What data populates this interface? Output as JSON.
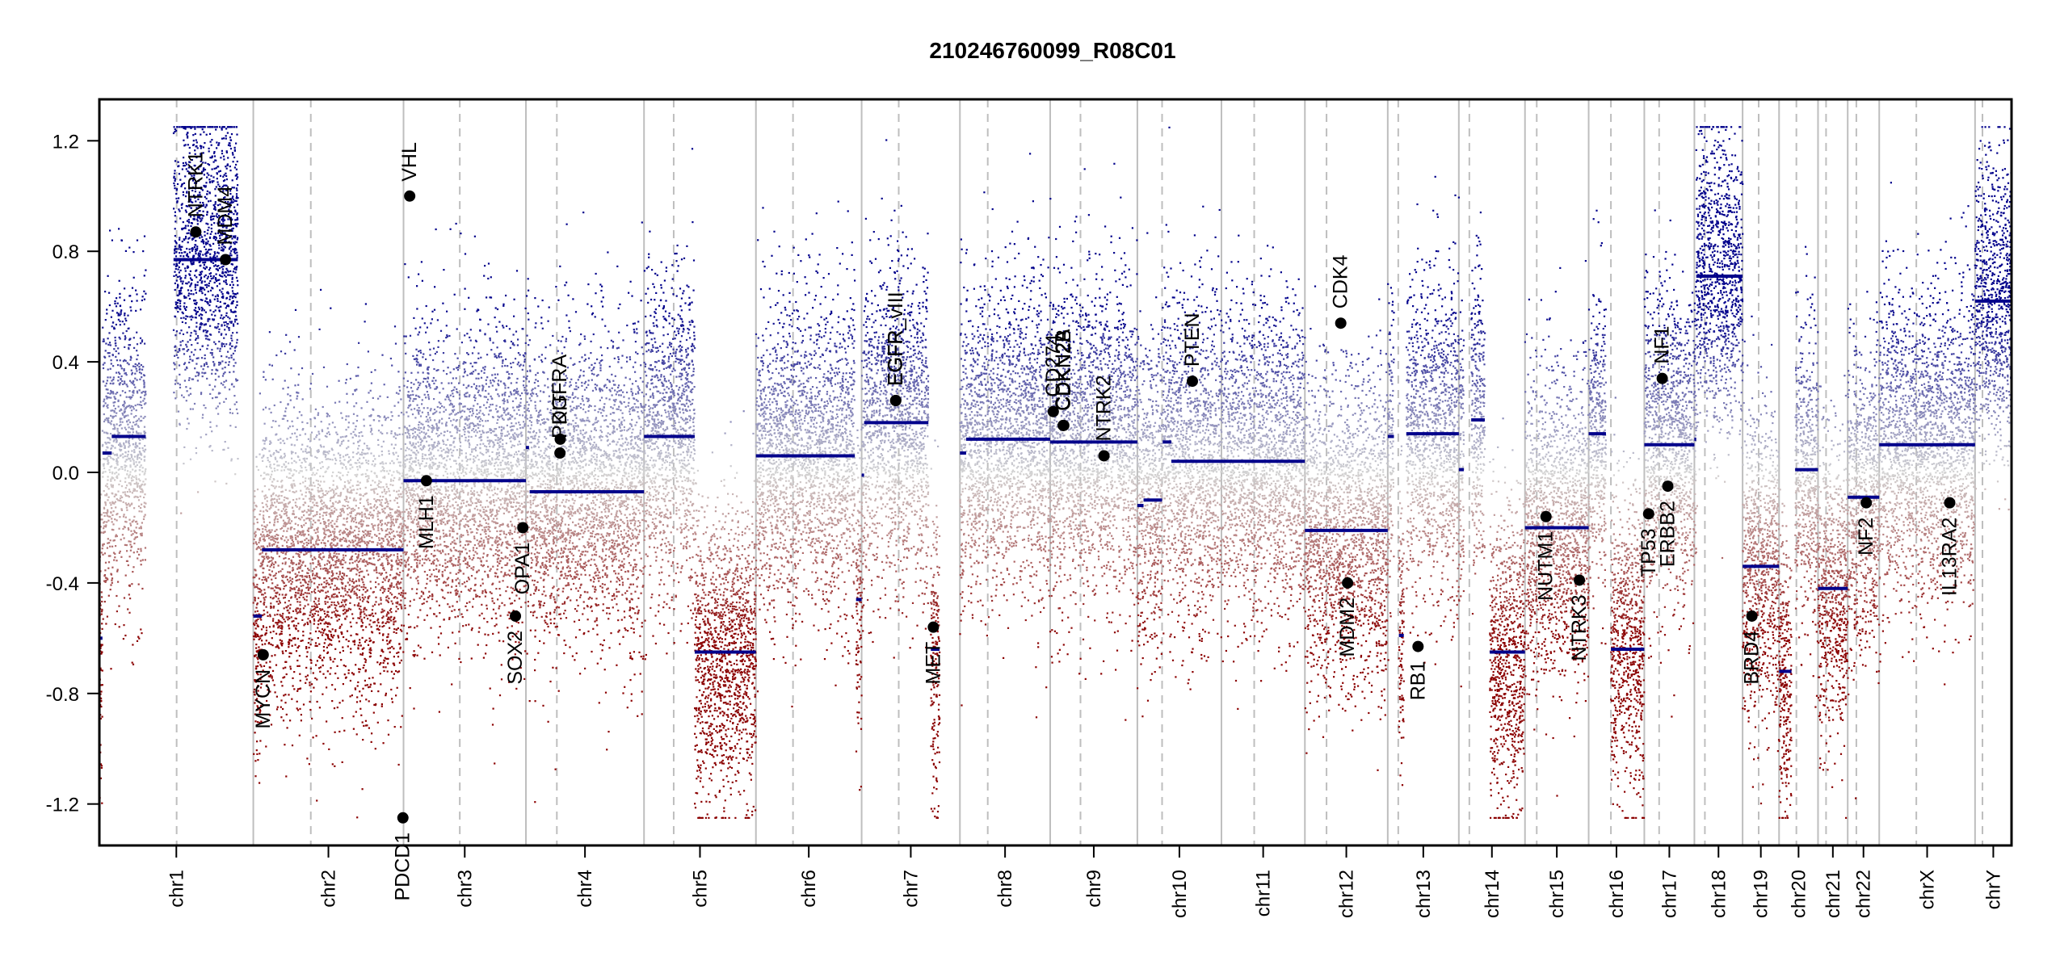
{
  "chart_data": {
    "type": "scatter",
    "title": "210246760099_R08C01",
    "xlabel": "",
    "ylabel": "",
    "ylim": [
      -1.35,
      1.35
    ],
    "yticks": [
      -1.2,
      -0.8,
      -0.4,
      0.0,
      0.4,
      0.8,
      1.2
    ],
    "ytick_labels": [
      "-1.2",
      "-0.8",
      "-0.4",
      "0.0",
      "0.4",
      "0.8",
      "1.2"
    ],
    "grid": false,
    "legend": "none",
    "colors": {
      "gain": "#00008b",
      "neutral": "#d3d3d3",
      "loss": "#8b0000",
      "segment": "#00008b",
      "gene_point": "#000000",
      "chrom_boundary": "#bebebe",
      "centromere": "#bebebe"
    },
    "chromosomes": [
      {
        "name": "chr1",
        "length": 249,
        "centromere": 125
      },
      {
        "name": "chr2",
        "length": 243,
        "centromere": 93
      },
      {
        "name": "chr3",
        "length": 198,
        "centromere": 91
      },
      {
        "name": "chr4",
        "length": 191,
        "centromere": 50
      },
      {
        "name": "chr5",
        "length": 181,
        "centromere": 48
      },
      {
        "name": "chr6",
        "length": 171,
        "centromere": 60
      },
      {
        "name": "chr7",
        "length": 159,
        "centromere": 60
      },
      {
        "name": "chr8",
        "length": 146,
        "centromere": 45
      },
      {
        "name": "chr9",
        "length": 141,
        "centromere": 49
      },
      {
        "name": "chr10",
        "length": 136,
        "centromere": 40
      },
      {
        "name": "chr11",
        "length": 135,
        "centromere": 53
      },
      {
        "name": "chr12",
        "length": 134,
        "centromere": 35
      },
      {
        "name": "chr13",
        "length": 115,
        "centromere": 17
      },
      {
        "name": "chr14",
        "length": 107,
        "centromere": 17
      },
      {
        "name": "chr15",
        "length": 103,
        "centromere": 19
      },
      {
        "name": "chr16",
        "length": 90,
        "centromere": 36
      },
      {
        "name": "chr17",
        "length": 81,
        "centromere": 24
      },
      {
        "name": "chr18",
        "length": 78,
        "centromere": 17
      },
      {
        "name": "chr19",
        "length": 59,
        "centromere": 26
      },
      {
        "name": "chr20",
        "length": 63,
        "centromere": 28
      },
      {
        "name": "chr21",
        "length": 48,
        "centromere": 13
      },
      {
        "name": "chr22",
        "length": 51,
        "centromere": 14
      },
      {
        "name": "chrX",
        "length": 155,
        "centromere": 60
      },
      {
        "name": "chrY",
        "length": 59,
        "centromere": 12
      }
    ],
    "segments": [
      {
        "chrom": "chr1",
        "start": 0,
        "end": 5,
        "value": -0.6
      },
      {
        "chrom": "chr1",
        "start": 5,
        "end": 20,
        "value": 0.07
      },
      {
        "chrom": "chr1",
        "start": 20,
        "end": 75,
        "value": 0.13
      },
      {
        "chrom": "chr1",
        "start": 120,
        "end": 224,
        "value": 0.77
      },
      {
        "chrom": "chr2",
        "start": 0,
        "end": 14,
        "value": -0.52
      },
      {
        "chrom": "chr2",
        "start": 14,
        "end": 243,
        "value": -0.28
      },
      {
        "chrom": "chr3",
        "start": 0,
        "end": 198,
        "value": -0.03
      },
      {
        "chrom": "chr4",
        "start": 0,
        "end": 5,
        "value": 0.09
      },
      {
        "chrom": "chr4",
        "start": 6,
        "end": 191,
        "value": -0.07
      },
      {
        "chrom": "chr5",
        "start": 0,
        "end": 82,
        "value": 0.13
      },
      {
        "chrom": "chr5",
        "start": 82,
        "end": 181,
        "value": -0.65
      },
      {
        "chrom": "chr6",
        "start": 0,
        "end": 160,
        "value": 0.06
      },
      {
        "chrom": "chr6",
        "start": 162,
        "end": 171,
        "value": -0.46
      },
      {
        "chrom": "chr7",
        "start": 0,
        "end": 4,
        "value": -0.01
      },
      {
        "chrom": "chr7",
        "start": 4,
        "end": 108,
        "value": 0.18
      },
      {
        "chrom": "chr7",
        "start": 112,
        "end": 126,
        "value": -0.64
      },
      {
        "chrom": "chr8",
        "start": 0,
        "end": 10,
        "value": 0.07
      },
      {
        "chrom": "chr8",
        "start": 10,
        "end": 146,
        "value": 0.12
      },
      {
        "chrom": "chr9",
        "start": 0,
        "end": 141,
        "value": 0.11
      },
      {
        "chrom": "chr10",
        "start": 0,
        "end": 10,
        "value": -0.12
      },
      {
        "chrom": "chr10",
        "start": 10,
        "end": 40,
        "value": -0.1
      },
      {
        "chrom": "chr10",
        "start": 41,
        "end": 55,
        "value": 0.11
      },
      {
        "chrom": "chr10",
        "start": 55,
        "end": 136,
        "value": 0.04
      },
      {
        "chrom": "chr11",
        "start": 0,
        "end": 135,
        "value": 0.04
      },
      {
        "chrom": "chr12",
        "start": 0,
        "end": 134,
        "value": -0.21
      },
      {
        "chrom": "chr13",
        "start": 0,
        "end": 10,
        "value": 0.13
      },
      {
        "chrom": "chr13",
        "start": 18,
        "end": 26,
        "value": -0.59
      },
      {
        "chrom": "chr13",
        "start": 30,
        "end": 115,
        "value": 0.14
      },
      {
        "chrom": "chr14",
        "start": 0,
        "end": 8,
        "value": 0.01
      },
      {
        "chrom": "chr14",
        "start": 20,
        "end": 42,
        "value": 0.19
      },
      {
        "chrom": "chr14",
        "start": 50,
        "end": 107,
        "value": -0.65
      },
      {
        "chrom": "chr15",
        "start": 0,
        "end": 103,
        "value": -0.2
      },
      {
        "chrom": "chr16",
        "start": 0,
        "end": 28,
        "value": 0.14
      },
      {
        "chrom": "chr16",
        "start": 36,
        "end": 90,
        "value": -0.64
      },
      {
        "chrom": "chr17",
        "start": 0,
        "end": 81,
        "value": 0.1
      },
      {
        "chrom": "chr18",
        "start": 0,
        "end": 3,
        "value": 0.12
      },
      {
        "chrom": "chr18",
        "start": 3,
        "end": 78,
        "value": 0.71
      },
      {
        "chrom": "chr19",
        "start": 0,
        "end": 59,
        "value": -0.34
      },
      {
        "chrom": "chr20",
        "start": 0,
        "end": 20,
        "value": -0.72
      },
      {
        "chrom": "chr20",
        "start": 26,
        "end": 63,
        "value": 0.01
      },
      {
        "chrom": "chr21",
        "start": 0,
        "end": 48,
        "value": -0.42
      },
      {
        "chrom": "chr22",
        "start": 0,
        "end": 51,
        "value": -0.09
      },
      {
        "chrom": "chrX",
        "start": 0,
        "end": 155,
        "value": 0.1
      },
      {
        "chrom": "chrY",
        "start": 0,
        "end": 59,
        "value": 0.62
      }
    ],
    "genes": [
      {
        "name": "NTRK1",
        "chrom": "chr1",
        "pos": 156,
        "value": 0.87
      },
      {
        "name": "MDM4",
        "chrom": "chr1",
        "pos": 204,
        "value": 0.77
      },
      {
        "name": "MYCN",
        "chrom": "chr2",
        "pos": 16,
        "value": -0.66
      },
      {
        "name": "PDCD1",
        "chrom": "chr2",
        "pos": 242,
        "value": -1.25
      },
      {
        "name": "VHL",
        "chrom": "chr3",
        "pos": 10,
        "value": 1.0
      },
      {
        "name": "MLH1",
        "chrom": "chr3",
        "pos": 37,
        "value": -0.03
      },
      {
        "name": "SOX2",
        "chrom": "chr3",
        "pos": 181,
        "value": -0.52
      },
      {
        "name": "OPA1",
        "chrom": "chr3",
        "pos": 193,
        "value": -0.2
      },
      {
        "name": "PDGFRA",
        "chrom": "chr4",
        "pos": 55,
        "value": 0.07
      },
      {
        "name": "KIT",
        "chrom": "chr4",
        "pos": 55.5,
        "value": 0.12
      },
      {
        "name": "EGFR",
        "chrom": "chr7",
        "pos": 55,
        "value": 0.26
      },
      {
        "name": "EGFR_vIII",
        "chrom": "chr7",
        "pos": 55.2,
        "value": 0.26
      },
      {
        "name": "MET",
        "chrom": "chr7",
        "pos": 116,
        "value": -0.56
      },
      {
        "name": "CD274",
        "chrom": "chr9",
        "pos": 5,
        "value": 0.22
      },
      {
        "name": "CDKN2A",
        "chrom": "chr9",
        "pos": 21,
        "value": 0.17
      },
      {
        "name": "CDKN2B",
        "chrom": "chr9",
        "pos": 22,
        "value": 0.17
      },
      {
        "name": "NTRK2",
        "chrom": "chr9",
        "pos": 87,
        "value": 0.06
      },
      {
        "name": "PTEN",
        "chrom": "chr10",
        "pos": 89,
        "value": 0.33
      },
      {
        "name": "CDK4",
        "chrom": "chr12",
        "pos": 58,
        "value": 0.54
      },
      {
        "name": "MDM2",
        "chrom": "chr12",
        "pos": 69,
        "value": -0.4
      },
      {
        "name": "RB1",
        "chrom": "chr13",
        "pos": 49,
        "value": -0.63
      },
      {
        "name": "NUTM1",
        "chrom": "chr15",
        "pos": 34,
        "value": -0.16
      },
      {
        "name": "NTRK3",
        "chrom": "chr15",
        "pos": 88,
        "value": -0.39
      },
      {
        "name": "TP53",
        "chrom": "chr17",
        "pos": 7,
        "value": -0.15
      },
      {
        "name": "NF1",
        "chrom": "chr17",
        "pos": 29,
        "value": 0.34
      },
      {
        "name": "ERBB2",
        "chrom": "chr17",
        "pos": 38,
        "value": -0.05
      },
      {
        "name": "BRD4",
        "chrom": "chr19",
        "pos": 15,
        "value": -0.52
      },
      {
        "name": "NF2",
        "chrom": "chr22",
        "pos": 30,
        "value": -0.11
      },
      {
        "name": "IL13RA2",
        "chrom": "chrX",
        "pos": 114,
        "value": -0.11
      }
    ]
  }
}
